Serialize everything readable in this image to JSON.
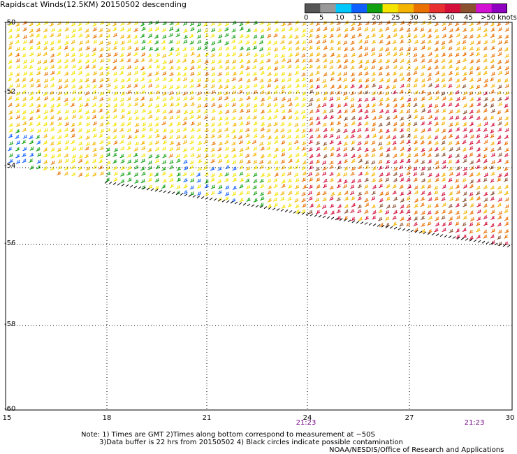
{
  "title": "Rapidscat Winds(12.5KM) 20150502 descending",
  "legend": {
    "unit_label": ">50 knots",
    "ticks": [
      "0",
      "5",
      "10",
      "15",
      "20",
      "25",
      "30",
      "35",
      "40",
      "45"
    ],
    "colors": [
      "#555555",
      "#999999",
      "#00c8ff",
      "#1060ff",
      "#10a010",
      "#f4e400",
      "#f4b400",
      "#ea7000",
      "#e83030",
      "#d4103a",
      "#8a5030",
      "#d410d4",
      "#9000c0"
    ]
  },
  "axes": {
    "lat_labels": [
      "-50",
      "-52",
      "-54",
      "-56",
      "-58",
      "-60"
    ],
    "lon_labels": [
      "15",
      "18",
      "21",
      "24",
      "27",
      "30"
    ],
    "time_labels": [
      "21:23",
      "21:23"
    ]
  },
  "notes": {
    "line1": "Note: 1) Times are GMT 2)Times along bottom correspond to measurement at −50S",
    "line2": "3)Data buffer is 22 hrs from 20150502 4) Black circles indicate possible contamination",
    "credit": "NOAA/NESDIS/Office of Research and Applications"
  }
}
